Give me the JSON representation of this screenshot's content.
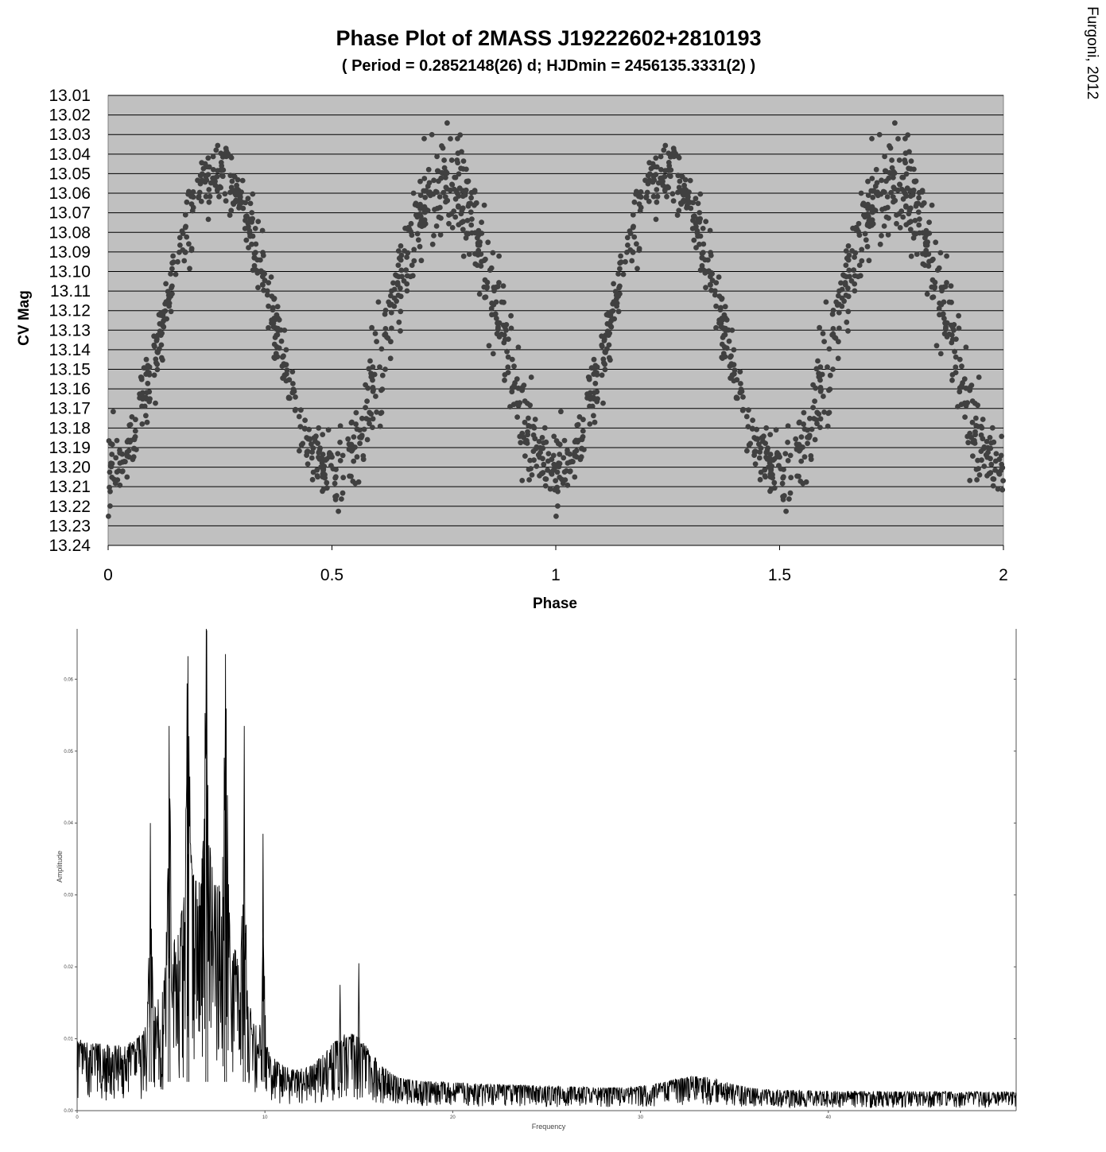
{
  "credit": "Furgoni, 2012",
  "chart_data": [
    {
      "type": "scatter",
      "title": "Phase Plot of 2MASS J19222602+2810193",
      "subtitle": "( Period = 0.2852148(26) d; HJDmin = 2456135.3331(2) )",
      "xlabel": "Phase",
      "ylabel": "CV Mag",
      "xlim": [
        0,
        2
      ],
      "ylim": [
        13.24,
        13.01
      ],
      "y_inverted": true,
      "xticks": [
        "0",
        "0.5",
        "1",
        "1.5",
        "2"
      ],
      "yticks": [
        "13.01",
        "13.02",
        "13.03",
        "13.04",
        "13.05",
        "13.06",
        "13.07",
        "13.08",
        "13.09",
        "13.10",
        "13.11",
        "13.12",
        "13.13",
        "13.14",
        "13.15",
        "13.16",
        "13.17",
        "13.18",
        "13.19",
        "13.20",
        "13.21",
        "13.22",
        "13.23",
        "13.24"
      ],
      "grid": "horizontal",
      "background": "#c0c0c0",
      "marker_color": "#404040",
      "light_curve": {
        "description_points_phase": [
          0.0,
          0.25,
          0.5,
          0.75,
          1.0
        ],
        "mean_mag_at_points": [
          13.2,
          13.045,
          13.2,
          13.06,
          13.2
        ],
        "max_brightness_primary": 13.025,
        "max_brightness_secondary": 13.03,
        "min_faint": 13.23
      }
    },
    {
      "type": "line",
      "xlabel": "Frequency",
      "ylabel": "Amplitude",
      "xlim": [
        0,
        50
      ],
      "ylim": [
        0,
        0.067
      ],
      "xticks": [
        "0",
        "10",
        "20",
        "30",
        "40"
      ],
      "yticks": [
        "0.00",
        "0.01",
        "0.02",
        "0.03",
        "0.04",
        "0.05",
        "0.06"
      ],
      "line_color": "#000000",
      "peaks": [
        {
          "x": 4.9,
          "y": 0.0535
        },
        {
          "x": 5.9,
          "y": 0.0632
        },
        {
          "x": 6.9,
          "y": 0.0668
        },
        {
          "x": 7.9,
          "y": 0.0635
        },
        {
          "x": 8.9,
          "y": 0.0535
        },
        {
          "x": 9.9,
          "y": 0.0385
        },
        {
          "x": 3.9,
          "y": 0.04
        },
        {
          "x": 15.0,
          "y": 0.0205
        },
        {
          "x": 14.0,
          "y": 0.0175
        }
      ]
    }
  ]
}
